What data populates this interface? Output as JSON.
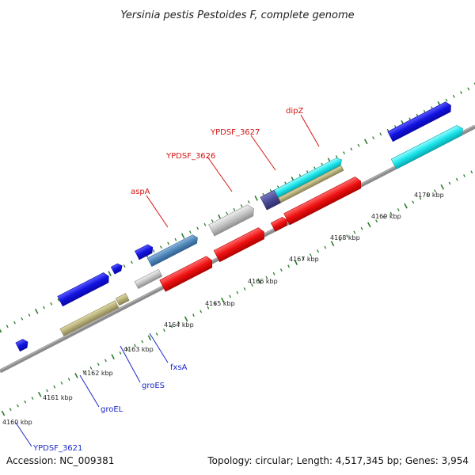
{
  "title": "Yersinia pestis Pestoides F, complete genome",
  "accession": "Accession: NC_009381",
  "summary": "Topology: circular; Length: 4,517,345 bp; Genes: 3,954",
  "colors": {
    "backbone": "#8c8c8c",
    "tick": "#2a7d2a",
    "red": "#ee1111",
    "blue": "#1212e0",
    "cyan": "#18e4ea",
    "steel": "#4f86b8",
    "olive": "#b7b07a",
    "grey": "#c4c4c4",
    "navy": "#4a4a96",
    "label_red": "#d51414",
    "label_blue": "#1c28c8"
  },
  "kbp_labels": [
    "4160 kbp",
    "4161 kbp",
    "4162 kbp",
    "4163 kbp",
    "4164 kbp",
    "4165 kbp",
    "4166 kbp",
    "4167 kbp",
    "4168 kbp",
    "4169 kbp",
    "4170 kbp"
  ],
  "top_gene_labels": [
    "aspA",
    "YPDSF_3626",
    "YPDSF_3627",
    "dipZ"
  ],
  "bottom_gene_labels": [
    "YPDSF_3621",
    "groEL",
    "groES",
    "fxsA"
  ]
}
